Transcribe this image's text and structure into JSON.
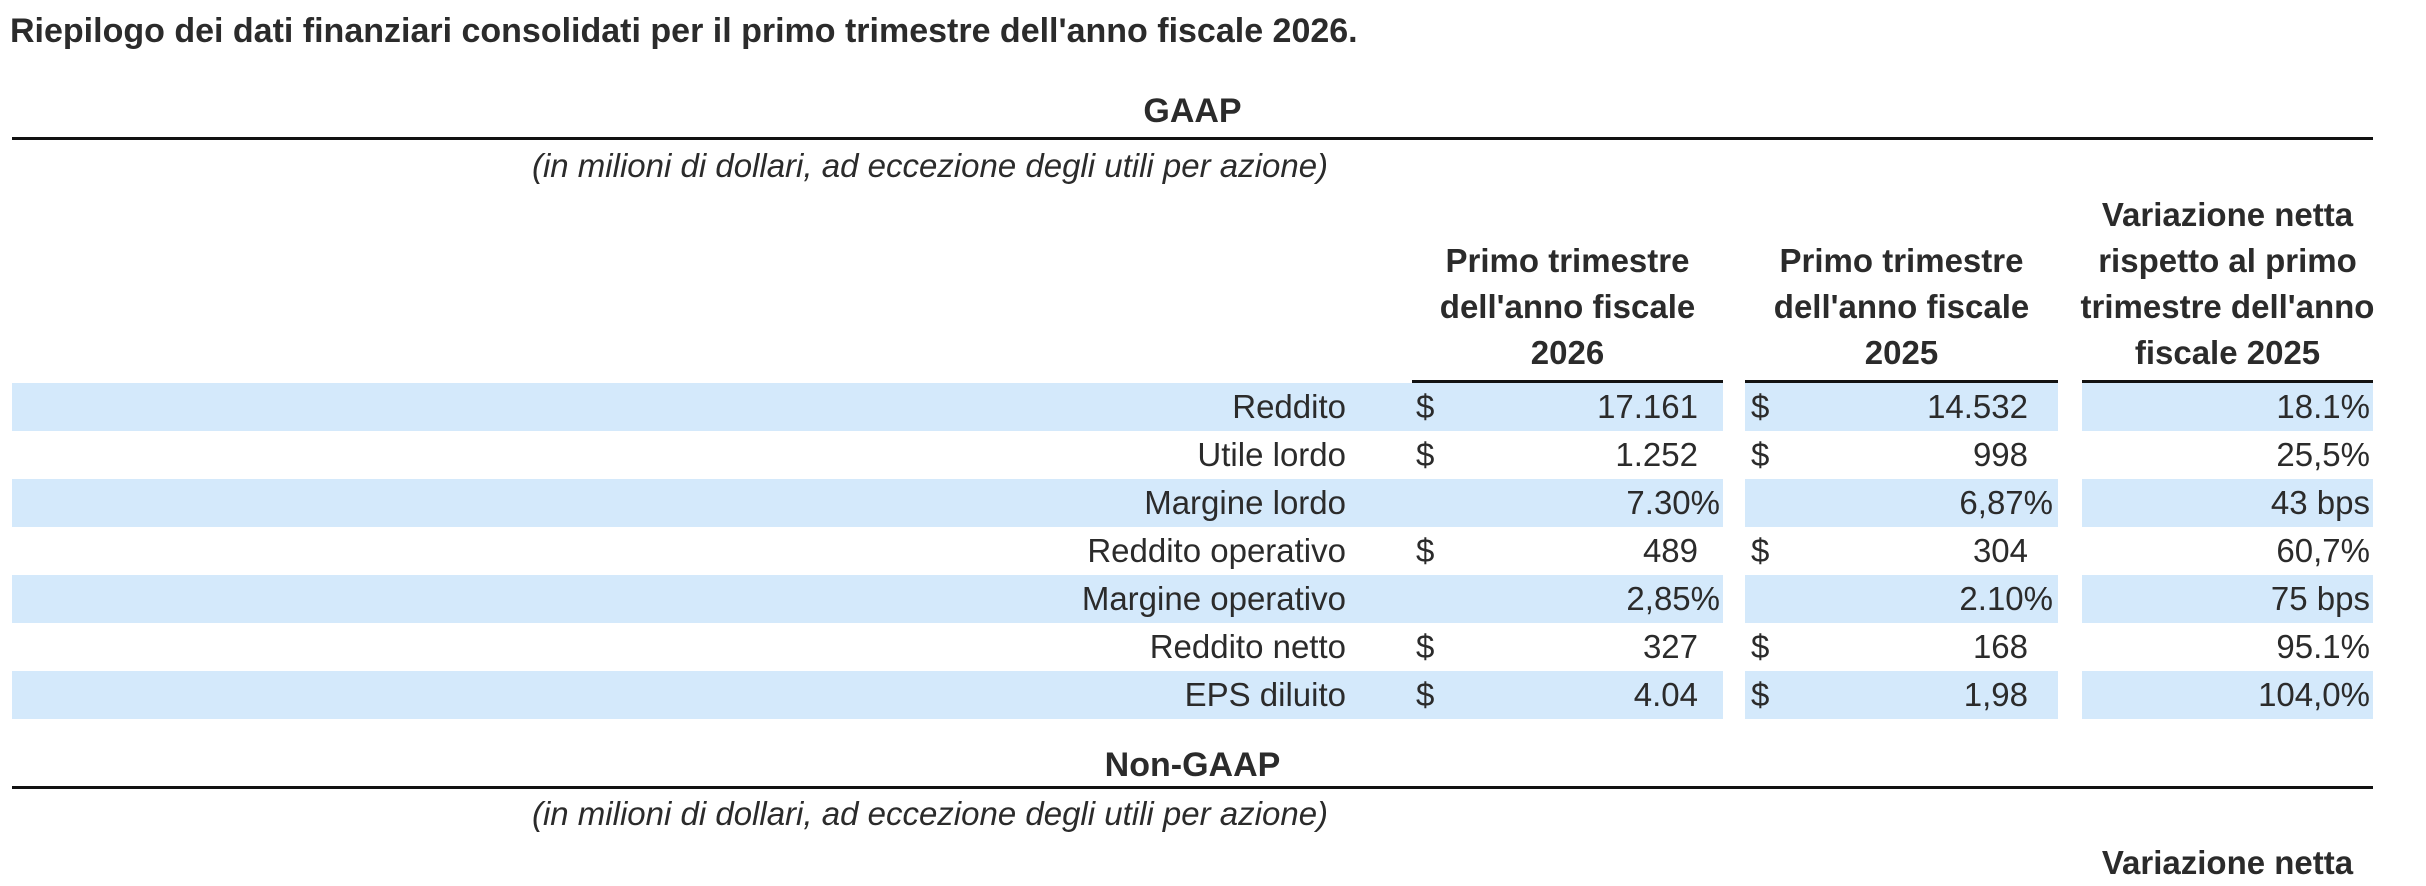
{
  "title": "Riepilogo dei dati finanziari consolidati per il primo trimestre dell'anno fiscale 2026.",
  "colors": {
    "stripe_blue": "#d4e9fb",
    "text": "#2b2b2b",
    "rule": "#121212"
  },
  "sections": {
    "gaap": {
      "heading": "GAAP",
      "caption": "(in milioni di dollari, ad eccezione degli utili per azione)",
      "col_headers": {
        "fy2026": [
          "Primo trimestre",
          "dell'anno fiscale",
          "2026"
        ],
        "fy2025": [
          "Primo trimestre",
          "dell'anno fiscale",
          "2025"
        ],
        "change": [
          "Variazione netta",
          "rispetto al primo",
          "trimestre dell'anno",
          "fiscale 2025"
        ]
      },
      "rows": [
        {
          "label": "Reddito",
          "cur1": "$",
          "val1": "17.161",
          "cur2": "$",
          "val2": "14.532",
          "change": "18.1%"
        },
        {
          "label": "Utile lordo",
          "cur1": "$",
          "val1": "1.252",
          "cur2": "$",
          "val2": "998",
          "change": "25,5%"
        },
        {
          "label": "Margine lordo",
          "cur1": "",
          "val1": "7.30%",
          "cur2": "",
          "val2": "6,87%",
          "change": "43 bps"
        },
        {
          "label": "Reddito operativo",
          "cur1": "$",
          "val1": "489",
          "cur2": "$",
          "val2": "304",
          "change": "60,7%"
        },
        {
          "label": "Margine operativo",
          "cur1": "",
          "val1": "2,85%",
          "cur2": "",
          "val2": "2.10%",
          "change": "75 bps"
        },
        {
          "label": "Reddito netto",
          "cur1": "$",
          "val1": "327",
          "cur2": "$",
          "val2": "168",
          "change": "95.1%"
        },
        {
          "label": "EPS diluito",
          "cur1": "$",
          "val1": "4.04",
          "cur2": "$",
          "val2": "1,98",
          "change": "104,0%"
        }
      ]
    },
    "nongaap": {
      "heading": "Non-GAAP",
      "caption": "(in milioni di dollari, ad eccezione degli utili per azione)",
      "partial_col_header": "Variazione netta"
    }
  }
}
